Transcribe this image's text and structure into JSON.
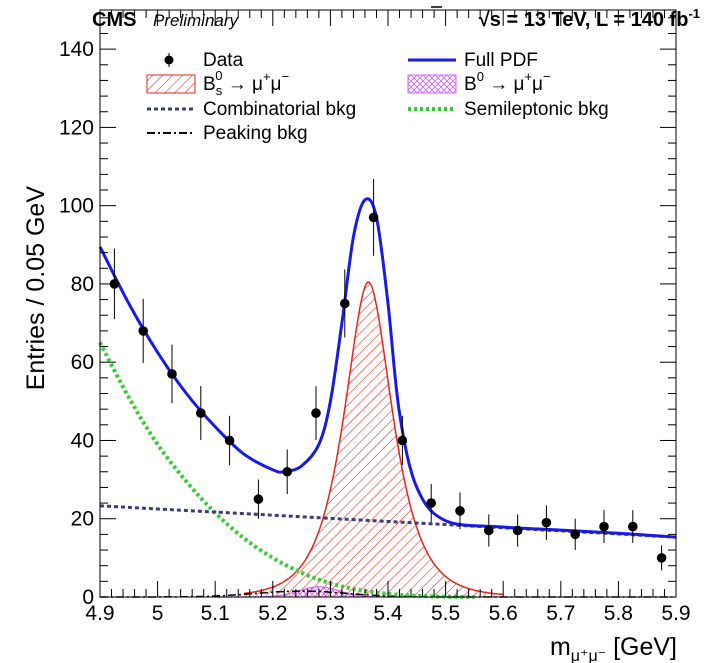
{
  "header": {
    "experiment": "CMS",
    "status": "Preliminary",
    "lumi_parts": [
      "√",
      "s = 13 TeV, L = 140 fb",
      "-1"
    ]
  },
  "chart_data": {
    "type": "scatter",
    "xlabel_parts": [
      "m",
      "μ⁺μ⁻",
      " [GeV]"
    ],
    "ylabel": "Entries / 0.05 GeV",
    "xlim": [
      4.9,
      5.9
    ],
    "ylim": [
      0,
      150
    ],
    "xticks": [
      4.9,
      5,
      5.1,
      5.2,
      5.3,
      5.4,
      5.5,
      5.6,
      5.7,
      5.8,
      5.9
    ],
    "yticks": [
      0,
      20,
      40,
      60,
      80,
      100,
      120,
      140
    ],
    "grid": false,
    "legend_position": "top",
    "legend": [
      {
        "key": "data",
        "label_parts": [
          "Data"
        ],
        "color": "#000000",
        "style": "marker"
      },
      {
        "key": "full",
        "label_parts": [
          "Full PDF"
        ],
        "color": "#1a1ae6",
        "style": "solid"
      },
      {
        "key": "bs",
        "label_parts": [
          "B",
          "s",
          "0",
          " → μ",
          "+",
          "μ",
          "−"
        ],
        "color": "#e8231c",
        "style": "hatched"
      },
      {
        "key": "b0",
        "label_parts": [
          "B",
          "",
          "0",
          " → μ",
          "+",
          "μ",
          "−"
        ],
        "color": "#cc66ff",
        "style": "crosshatched"
      },
      {
        "key": "comb",
        "label_parts": [
          "Combinatorial bkg"
        ],
        "color": "#3c3c78",
        "style": "dashed"
      },
      {
        "key": "semi",
        "label_parts": [
          "Semileptonic bkg"
        ],
        "color": "#33cc33",
        "style": "dotted"
      },
      {
        "key": "peak",
        "label_parts": [
          "Peaking bkg"
        ],
        "color": "#000000",
        "style": "dashdot"
      }
    ],
    "data_points": [
      {
        "x": 4.925,
        "y": 80,
        "err": 9
      },
      {
        "x": 4.975,
        "y": 68,
        "err": 8.2
      },
      {
        "x": 5.025,
        "y": 57,
        "err": 7.5
      },
      {
        "x": 5.075,
        "y": 47,
        "err": 6.9
      },
      {
        "x": 5.125,
        "y": 40,
        "err": 6.3
      },
      {
        "x": 5.175,
        "y": 25,
        "err": 5
      },
      {
        "x": 5.225,
        "y": 32,
        "err": 5.7
      },
      {
        "x": 5.275,
        "y": 47,
        "err": 6.9
      },
      {
        "x": 5.325,
        "y": 75,
        "err": 8.7
      },
      {
        "x": 5.375,
        "y": 97,
        "err": 9.8
      },
      {
        "x": 5.425,
        "y": 40,
        "err": 6.3
      },
      {
        "x": 5.475,
        "y": 24,
        "err": 4.9
      },
      {
        "x": 5.525,
        "y": 22,
        "err": 4.7
      },
      {
        "x": 5.575,
        "y": 17,
        "err": 4.1
      },
      {
        "x": 5.625,
        "y": 17,
        "err": 4.1
      },
      {
        "x": 5.675,
        "y": 19,
        "err": 4.4
      },
      {
        "x": 5.725,
        "y": 16,
        "err": 4
      },
      {
        "x": 5.775,
        "y": 18,
        "err": 4.2
      },
      {
        "x": 5.825,
        "y": 18,
        "err": 4.2
      },
      {
        "x": 5.875,
        "y": 10,
        "err": 3.2
      }
    ],
    "curves": {
      "combinatorial": {
        "x": [
          4.9,
          5.9
        ],
        "y": [
          23.3,
          15.3
        ]
      },
      "semileptonic": {
        "x": [
          4.9,
          4.95,
          5.0,
          5.05,
          5.1,
          5.15,
          5.2,
          5.25,
          5.3,
          5.35,
          5.4,
          5.45,
          5.5,
          5.55
        ],
        "y": [
          65,
          51,
          39,
          29.5,
          21.5,
          15,
          10,
          6.2,
          3.5,
          1.8,
          0.8,
          0.3,
          0.1,
          0
        ]
      },
      "bs_signal": {
        "mean": 5.366,
        "amplitude": 80.5,
        "sigma": 0.033,
        "tail": 0.006
      },
      "b0_signal": {
        "mean": 5.28,
        "amplitude": 2.6,
        "sigma": 0.035
      },
      "peaking": {
        "mean": 5.25,
        "amplitude": 1.5,
        "sigma": 0.08
      },
      "full_pdf": {
        "x": [
          4.9,
          4.95,
          5.0,
          5.05,
          5.1,
          5.15,
          5.2,
          5.22,
          5.25,
          5.28,
          5.3,
          5.32,
          5.34,
          5.36,
          5.38,
          5.4,
          5.42,
          5.45,
          5.5,
          5.6,
          5.7,
          5.8,
          5.9
        ],
        "y": [
          89.5,
          75,
          62.5,
          52,
          43.5,
          36.5,
          32.5,
          32,
          33.5,
          39,
          50,
          70,
          92,
          101.5,
          97,
          75,
          47,
          28,
          19.5,
          17.9,
          17.1,
          16.3,
          15.3
        ]
      }
    }
  }
}
